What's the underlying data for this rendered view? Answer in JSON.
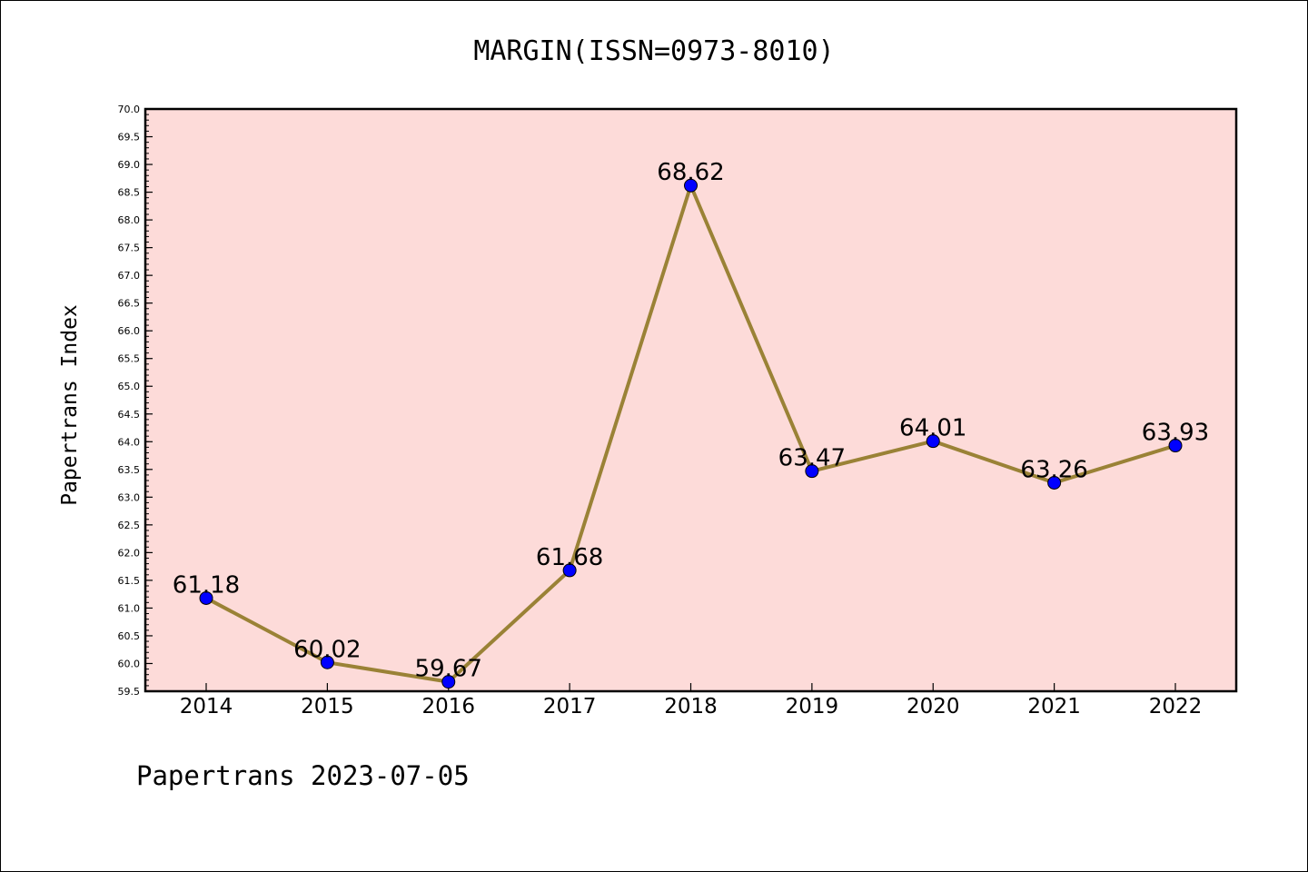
{
  "chart_data": {
    "type": "line",
    "title": "MARGIN(ISSN=0973-8010)",
    "ylabel": "Papertrans Index",
    "xlabel": "",
    "categories": [
      "2014",
      "2015",
      "2016",
      "2017",
      "2018",
      "2019",
      "2020",
      "2021",
      "2022"
    ],
    "series": [
      {
        "values": [
          61.18,
          60.02,
          59.67,
          61.68,
          68.62,
          63.47,
          64.01,
          63.26,
          63.93
        ],
        "data_labels": [
          "61.18",
          "60.02",
          "59.67",
          "61.68",
          "68.62",
          "63.47",
          "64.01",
          "63.26",
          "63.93"
        ]
      }
    ],
    "ylim": [
      59.5,
      70.0
    ],
    "ytick_step": 0.5,
    "ytick_labels": [
      "59.5",
      "60.0",
      "60.5",
      "61.0",
      "61.5",
      "62.0",
      "62.5",
      "63.0",
      "63.5",
      "64.0",
      "64.5",
      "65.0",
      "65.5",
      "66.0",
      "66.5",
      "67.0",
      "67.5",
      "68.0",
      "68.5",
      "69.0",
      "69.5",
      "70.0"
    ],
    "grid": false,
    "legend": "none",
    "colors": {
      "plot_background": "#fddbd9",
      "line": "#9a8236",
      "marker": "#0000ff"
    }
  },
  "footer": {
    "text": "Papertrans 2023-07-05"
  }
}
